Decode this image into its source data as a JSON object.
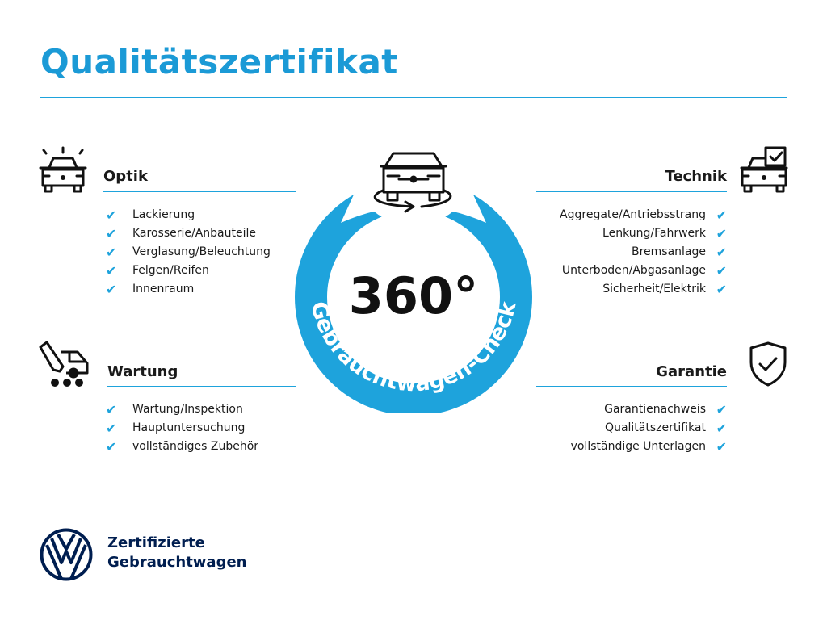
{
  "title": "Qualitätszertifikat",
  "colors": {
    "accent": "#1ea3dc",
    "title": "#1b9ad6",
    "brand": "#001e50"
  },
  "center": {
    "big": "360°",
    "ring_text": "Gebrauchtwagen-Check",
    "icon": "car-rotate-icon"
  },
  "sections": {
    "optik": {
      "title": "Optik",
      "icon": "car-lights-icon",
      "items": [
        "Lackierung",
        "Karosserie/Anbauteile",
        "Verglasung/Beleuchtung",
        "Felgen/Reifen",
        "Innenraum"
      ]
    },
    "technik": {
      "title": "Technik",
      "icon": "car-checkbox-icon",
      "items": [
        "Aggregate/Antriebsstrang",
        "Lenkung/Fahrwerk",
        "Bremsanlage",
        "Unterboden/Abgasanlage",
        "Sicherheit/Elektrik"
      ]
    },
    "wartung": {
      "title": "Wartung",
      "icon": "service-van-icon",
      "items": [
        "Wartung/Inspektion",
        "Hauptuntersuchung",
        "vollständiges Zubehör"
      ]
    },
    "garantie": {
      "title": "Garantie",
      "icon": "shield-check-icon",
      "items": [
        "Garantienachweis",
        "Qualitätszertifikat",
        "vollständige Unterlagen"
      ]
    }
  },
  "check_glyph": "✔",
  "logo": {
    "line1": "Zertifizierte",
    "line2": "Gebrauchtwagen"
  }
}
